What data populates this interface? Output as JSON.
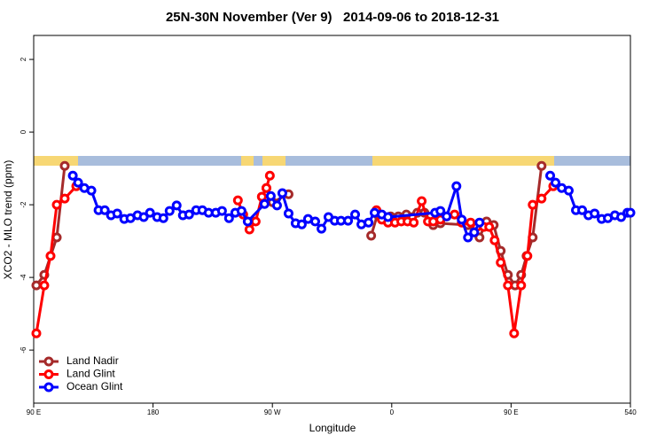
{
  "chart_data": {
    "type": "line",
    "title": "25N-30N November (Ver 9)   2014-09-06 to 2018-12-31",
    "x_label": "Longitude",
    "y_label": "XCO2 - MLO trend (ppm)",
    "xlim": [
      90,
      540
    ],
    "ylim": [
      -7.46,
      2.66
    ],
    "xticks": [
      {
        "value": 90,
        "label": "90 E"
      },
      180,
      {
        "value": 270,
        "label": "90 W"
      },
      {
        "value": 360,
        "label": "0"
      },
      {
        "value": 450,
        "label": "90 E"
      },
      540
    ],
    "yticks": [
      -6,
      -4,
      -2,
      0,
      2
    ],
    "legend": "bottom-left",
    "series": [
      {
        "name": "Land Nadir",
        "color": "#a52a2a",
        "x": [
          92,
          98,
          107.4,
          113.4,
          null,
          262.1,
          265.5,
          270.2,
          282.2,
          null,
          344.5,
          349.2,
          353.9,
          359.2,
          365,
          371,
          379.3,
          384.7,
          391.3,
          396.7,
          417.5,
          426.2,
          431.5,
          436.9,
          442.2,
          447.6,
          453,
          457.6,
          461.7,
          466.3,
          473
        ],
        "values": [
          -4.22,
          -3.93,
          -2.9,
          -0.93,
          null,
          -1.78,
          -1.54,
          -1.93,
          -1.71,
          null,
          -2.85,
          -2.27,
          -2.34,
          -2.32,
          -2.32,
          -2.27,
          -2.22,
          -2.22,
          -2.56,
          -2.51,
          -2.56,
          -2.9,
          -2.46,
          -2.56,
          -3.27,
          -3.93,
          -4.22,
          -3.93,
          -3.41,
          -2.9,
          -0.93
        ]
      },
      {
        "name": "Land Glint",
        "color": "#ff0000",
        "x": [
          92,
          98,
          102.7,
          107.4,
          113.4,
          122.1,
          null,
          244,
          248,
          252.7,
          257.4,
          262.1,
          265.5,
          268.1,
          null,
          348.5,
          352.5,
          357.2,
          362.5,
          367.2,
          371.9,
          376.6,
          382.6,
          387.3,
          391.3,
          396.7,
          401.4,
          407.4,
          412.8,
          419.5,
          424.2,
          429.5,
          433.5,
          437.6,
          442.2,
          447.6,
          452.3,
          457.6,
          462.3,
          466.3,
          473,
          481.8
        ],
        "values": [
          -5.54,
          -4.22,
          -3.41,
          -2,
          -1.83,
          -1.49,
          null,
          -1.88,
          -2.27,
          -2.68,
          -2.46,
          -1.78,
          -1.54,
          -1.2,
          null,
          -2.15,
          -2.41,
          -2.49,
          -2.49,
          -2.46,
          -2.46,
          -2.49,
          -1.9,
          -2.46,
          -2.46,
          -2.41,
          -2.32,
          -2.27,
          -2.49,
          -2.49,
          -2.61,
          -2.61,
          -2.61,
          -2.98,
          -3.59,
          -4.22,
          -5.54,
          -4.22,
          -3.41,
          -2,
          -1.83,
          -1.49
        ]
      },
      {
        "name": "Ocean Glint",
        "color": "#0000ff",
        "x": [
          119.5,
          123.5,
          128.2,
          133.5,
          138.9,
          143.6,
          148.3,
          153,
          158.3,
          163,
          168.3,
          173,
          177.7,
          183.1,
          187.8,
          192.5,
          197.8,
          202.5,
          207.2,
          212.5,
          217.2,
          221.9,
          227.3,
          232,
          237.3,
          242,
          246.7,
          251.4,
          264.1,
          268.8,
          273.5,
          277.5,
          282.2,
          287.5,
          292.2,
          296.9,
          302.3,
          307,
          312.3,
          317,
          321.7,
          327.1,
          332.4,
          337.1,
          342.5,
          347.1,
          352.5,
          357.2,
          392.7,
          396.7,
          401.4,
          408.8,
          412.8,
          417.5,
          422.2,
          426.2,
          null,
          479.5,
          483.5,
          488.2,
          493.5,
          498.9,
          503.6,
          508.3,
          513,
          518.3,
          523,
          528.3,
          533,
          537.7,
          540
        ],
        "values": [
          -1.2,
          -1.39,
          -1.54,
          -1.61,
          -2.15,
          -2.15,
          -2.29,
          -2.24,
          -2.39,
          -2.37,
          -2.29,
          -2.34,
          -2.22,
          -2.34,
          -2.37,
          -2.17,
          -2.02,
          -2.29,
          -2.27,
          -2.15,
          -2.15,
          -2.22,
          -2.22,
          -2.17,
          -2.37,
          -2.22,
          -2.17,
          -2.46,
          -1.98,
          -1.76,
          -2.02,
          -1.68,
          -2.24,
          -2.51,
          -2.54,
          -2.39,
          -2.46,
          -2.66,
          -2.34,
          -2.44,
          -2.44,
          -2.44,
          -2.27,
          -2.54,
          -2.49,
          -2.22,
          -2.27,
          -2.34,
          -2.22,
          -2.17,
          -2.32,
          -1.49,
          -2.41,
          -2.9,
          -2.76,
          -2.49,
          null,
          -1.2,
          -1.39,
          -1.54,
          -1.61,
          -2.15,
          -2.15,
          -2.29,
          -2.24,
          -2.39,
          -2.37,
          -2.29,
          -2.34,
          -2.22,
          -2.22
        ]
      }
    ]
  }
}
